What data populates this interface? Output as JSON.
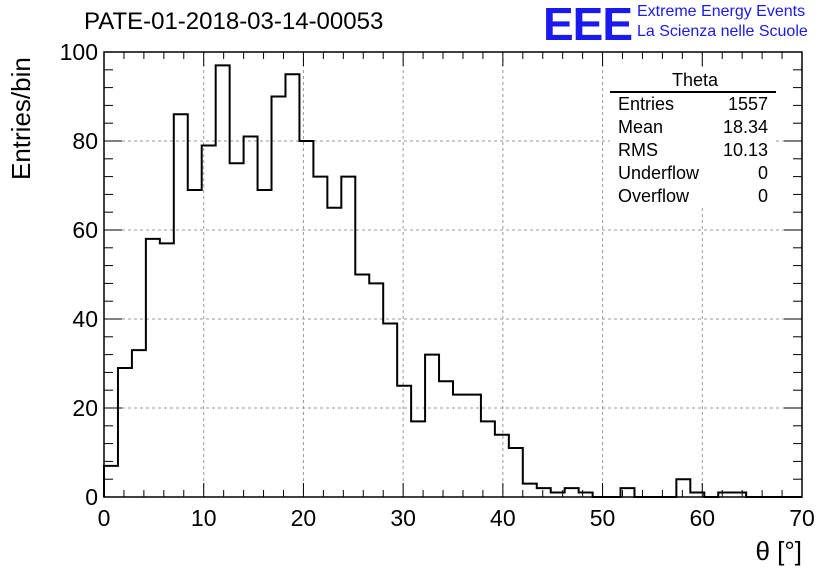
{
  "title": "PATE-01-2018-03-14-00053",
  "logo": {
    "mark": "EEE",
    "line1": "Extreme Energy Events",
    "line2": "La Scienza nelle Scuole",
    "color": "#1a1aee"
  },
  "stats": {
    "title": "Theta",
    "rows": [
      {
        "label": "Entries",
        "value": "1557"
      },
      {
        "label": "Mean",
        "value": "18.34"
      },
      {
        "label": "RMS",
        "value": "10.13"
      },
      {
        "label": "Underflow",
        "value": "0"
      },
      {
        "label": "Overflow",
        "value": "0"
      }
    ]
  },
  "chart_data": {
    "type": "bar",
    "style": "step-histogram",
    "xlabel": "θ [°]",
    "ylabel": "Entries/bin",
    "xlim": [
      0,
      70
    ],
    "ylim": [
      0,
      100
    ],
    "xticks": [
      0,
      10,
      20,
      30,
      40,
      50,
      60,
      70
    ],
    "yticks": [
      0,
      20,
      40,
      60,
      80,
      100
    ],
    "grid": true,
    "bin_width": 1.4,
    "bin_edges_start": 0,
    "values": [
      7,
      29,
      33,
      58,
      57,
      86,
      69,
      79,
      97,
      75,
      81,
      69,
      90,
      95,
      80,
      72,
      65,
      72,
      50,
      48,
      39,
      25,
      17,
      32,
      26,
      23,
      23,
      17,
      14,
      11,
      3,
      2,
      1,
      2,
      1,
      0,
      0,
      2,
      0,
      0,
      0,
      4,
      1,
      0,
      1,
      1,
      0,
      0,
      0,
      0
    ]
  }
}
